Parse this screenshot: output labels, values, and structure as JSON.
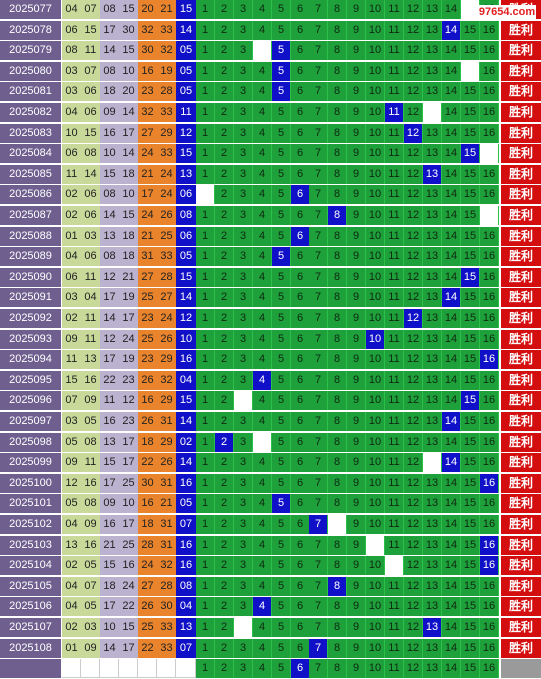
{
  "watermark": "97654.com",
  "win_label": "胜利",
  "rows": [
    {
      "period": "2025077",
      "nums": [
        "04",
        "07",
        "08",
        "15",
        "20",
        "21"
      ],
      "blue": "15",
      "hit": 0,
      "miss": 15
    },
    {
      "period": "2025078",
      "nums": [
        "06",
        "15",
        "17",
        "30",
        "32",
        "33"
      ],
      "blue": "14",
      "hit": 14,
      "miss": 0
    },
    {
      "period": "2025079",
      "nums": [
        "08",
        "11",
        "14",
        "15",
        "30",
        "32"
      ],
      "blue": "05",
      "hit": 5,
      "miss": 4
    },
    {
      "period": "2025080",
      "nums": [
        "03",
        "07",
        "08",
        "10",
        "16",
        "19"
      ],
      "blue": "05",
      "hit": 5,
      "miss": 15
    },
    {
      "period": "2025081",
      "nums": [
        "03",
        "06",
        "18",
        "20",
        "23",
        "28"
      ],
      "blue": "05",
      "hit": 5,
      "miss": 0
    },
    {
      "period": "2025082",
      "nums": [
        "04",
        "06",
        "09",
        "14",
        "32",
        "33"
      ],
      "blue": "11",
      "hit": 11,
      "miss": 13
    },
    {
      "period": "2025083",
      "nums": [
        "10",
        "15",
        "16",
        "17",
        "27",
        "29"
      ],
      "blue": "12",
      "hit": 12,
      "miss": 0
    },
    {
      "period": "2025084",
      "nums": [
        "06",
        "08",
        "10",
        "14",
        "24",
        "33"
      ],
      "blue": "15",
      "hit": 15,
      "miss": 16
    },
    {
      "period": "2025085",
      "nums": [
        "11",
        "14",
        "15",
        "18",
        "21",
        "24"
      ],
      "blue": "13",
      "hit": 13,
      "miss": 0
    },
    {
      "period": "2025086",
      "nums": [
        "02",
        "06",
        "08",
        "10",
        "17",
        "24"
      ],
      "blue": "06",
      "hit": 6,
      "miss": 1
    },
    {
      "period": "2025087",
      "nums": [
        "02",
        "06",
        "14",
        "15",
        "24",
        "26"
      ],
      "blue": "08",
      "hit": 8,
      "miss": 16
    },
    {
      "period": "2025088",
      "nums": [
        "01",
        "03",
        "13",
        "18",
        "21",
        "25"
      ],
      "blue": "06",
      "hit": 6,
      "miss": 0
    },
    {
      "period": "2025089",
      "nums": [
        "04",
        "06",
        "08",
        "18",
        "31",
        "33"
      ],
      "blue": "05",
      "hit": 5,
      "miss": 0
    },
    {
      "period": "2025090",
      "nums": [
        "06",
        "11",
        "12",
        "21",
        "27",
        "28"
      ],
      "blue": "15",
      "hit": 15,
      "miss": 0
    },
    {
      "period": "2025091",
      "nums": [
        "03",
        "04",
        "17",
        "19",
        "25",
        "27"
      ],
      "blue": "14",
      "hit": 14,
      "miss": 0
    },
    {
      "period": "2025092",
      "nums": [
        "02",
        "11",
        "14",
        "17",
        "23",
        "24"
      ],
      "blue": "12",
      "hit": 12,
      "miss": 0
    },
    {
      "period": "2025093",
      "nums": [
        "09",
        "11",
        "12",
        "24",
        "25",
        "26"
      ],
      "blue": "10",
      "hit": 10,
      "miss": 0
    },
    {
      "period": "2025094",
      "nums": [
        "11",
        "13",
        "17",
        "19",
        "23",
        "29"
      ],
      "blue": "16",
      "hit": 16,
      "miss": 0
    },
    {
      "period": "2025095",
      "nums": [
        "15",
        "16",
        "22",
        "23",
        "26",
        "32"
      ],
      "blue": "04",
      "hit": 4,
      "miss": 0
    },
    {
      "period": "2025096",
      "nums": [
        "07",
        "09",
        "11",
        "12",
        "16",
        "29"
      ],
      "blue": "15",
      "hit": 15,
      "miss": 3
    },
    {
      "period": "2025097",
      "nums": [
        "03",
        "05",
        "16",
        "23",
        "26",
        "31"
      ],
      "blue": "14",
      "hit": 14,
      "miss": 0
    },
    {
      "period": "2025098",
      "nums": [
        "05",
        "08",
        "13",
        "17",
        "18",
        "29"
      ],
      "blue": "02",
      "hit": 2,
      "miss": 4
    },
    {
      "period": "2025099",
      "nums": [
        "09",
        "11",
        "15",
        "17",
        "22",
        "26"
      ],
      "blue": "14",
      "hit": 14,
      "miss": 13
    },
    {
      "period": "2025100",
      "nums": [
        "12",
        "16",
        "17",
        "25",
        "30",
        "31"
      ],
      "blue": "16",
      "hit": 16,
      "miss": 0
    },
    {
      "period": "2025101",
      "nums": [
        "05",
        "08",
        "09",
        "10",
        "16",
        "21"
      ],
      "blue": "05",
      "hit": 5,
      "miss": 0
    },
    {
      "period": "2025102",
      "nums": [
        "04",
        "09",
        "16",
        "17",
        "18",
        "31"
      ],
      "blue": "07",
      "hit": 7,
      "miss": 8
    },
    {
      "period": "2025103",
      "nums": [
        "13",
        "16",
        "21",
        "25",
        "28",
        "31"
      ],
      "blue": "16",
      "hit": 16,
      "miss": 10
    },
    {
      "period": "2025104",
      "nums": [
        "02",
        "05",
        "15",
        "16",
        "24",
        "32"
      ],
      "blue": "16",
      "hit": 16,
      "miss": 11
    },
    {
      "period": "2025105",
      "nums": [
        "04",
        "07",
        "18",
        "24",
        "27",
        "28"
      ],
      "blue": "08",
      "hit": 8,
      "miss": 0
    },
    {
      "period": "2025106",
      "nums": [
        "04",
        "05",
        "17",
        "22",
        "26",
        "30"
      ],
      "blue": "04",
      "hit": 4,
      "miss": 0
    },
    {
      "period": "2025107",
      "nums": [
        "02",
        "03",
        "10",
        "15",
        "25",
        "33"
      ],
      "blue": "13",
      "hit": 13,
      "miss": 3
    },
    {
      "period": "2025108",
      "nums": [
        "01",
        "09",
        "14",
        "17",
        "22",
        "33"
      ],
      "blue": "07",
      "hit": 7,
      "miss": 0
    }
  ],
  "last_row": {
    "hit": 6,
    "miss": 0
  }
}
